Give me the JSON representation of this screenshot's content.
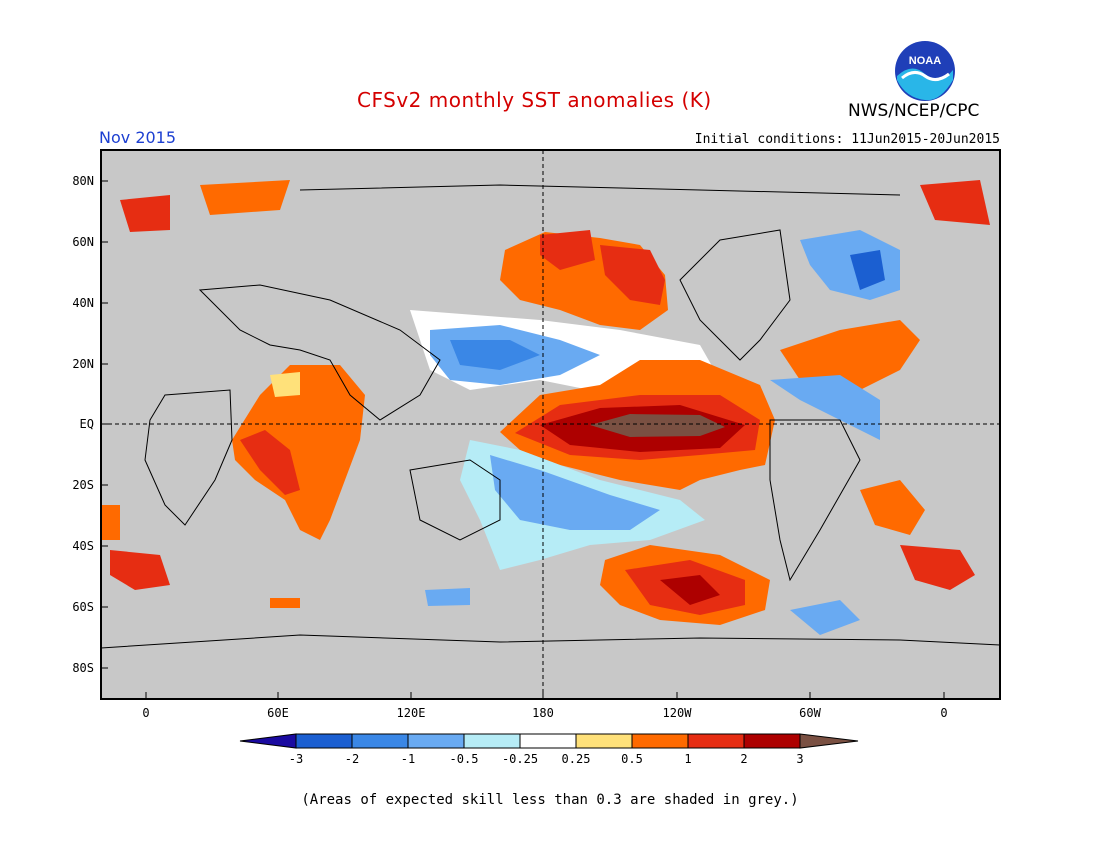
{
  "header": {
    "title": "CFSv2 monthly SST anomalies (K)",
    "agency": "NWS/NCEP/CPC",
    "period": "Nov 2015",
    "initial_conditions": "Initial conditions: 11Jun2015-20Jun2015",
    "logo_text": "NOAA"
  },
  "map": {
    "projection": "cylindrical equidistant",
    "lon_range": [
      -20,
      380
    ],
    "lat_range": [
      -90,
      90
    ],
    "background_land_color": "#c8c8c8",
    "lat_ticks": [
      "80N",
      "60N",
      "40N",
      "20N",
      "EQ",
      "20S",
      "40S",
      "60S",
      "80S"
    ],
    "lon_ticks": [
      "0",
      "60E",
      "120E",
      "180",
      "120W",
      "60W",
      "0"
    ],
    "reference_lines": [
      "EQ",
      "180"
    ]
  },
  "colorbar": {
    "boundaries": [
      "-3",
      "-2",
      "-1",
      "-0.5",
      "-0.25",
      "0.25",
      "0.5",
      "1",
      "2",
      "3"
    ],
    "colors": [
      "#1a0aa0",
      "#1b5fd1",
      "#3a87e6",
      "#69aaf2",
      "#b6ecf6",
      "#ffffff",
      "#ffe17a",
      "#ff6a00",
      "#e62d12",
      "#ad0000",
      "#7a5042"
    ]
  },
  "footnote": "(Areas of expected skill less than 0.3 are shaded in grey.)"
}
